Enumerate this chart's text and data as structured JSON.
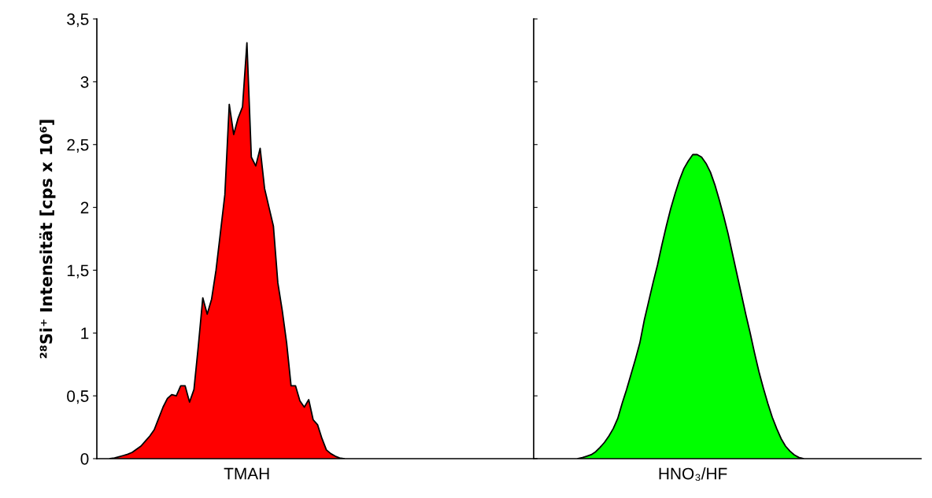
{
  "chart_data": {
    "type": "area",
    "ylabel": "²⁸Si⁺ Intensität [cps x 10⁶]",
    "categories": [
      null,
      null,
      null,
      null,
      null,
      null,
      null,
      null,
      null,
      null,
      null,
      null,
      null,
      null,
      null,
      null,
      null,
      null,
      null,
      null,
      null,
      null,
      null,
      null,
      null,
      null,
      null,
      null,
      null,
      null,
      null,
      "TMAH",
      null,
      null,
      null,
      null,
      null,
      null,
      null,
      null,
      null,
      null,
      null,
      null,
      null,
      null,
      null,
      null,
      null,
      null,
      null,
      null,
      null,
      null,
      null,
      null,
      null,
      null,
      null,
      null,
      null,
      null,
      null,
      null,
      null,
      null,
      null,
      null,
      null,
      null,
      null,
      null,
      null,
      null,
      null,
      null,
      null,
      null,
      null,
      null,
      null,
      null,
      null,
      null,
      null,
      null,
      null,
      null,
      null,
      null,
      null,
      null,
      null,
      null,
      null,
      null,
      null,
      null,
      null,
      null,
      null,
      null,
      null,
      null,
      null,
      null,
      null,
      null,
      null,
      null,
      null,
      null,
      null,
      null,
      null,
      null,
      null,
      null,
      null,
      null,
      null,
      null,
      null,
      null,
      null,
      null,
      null,
      null,
      null,
      null,
      null,
      null,
      "HNO₃/HF",
      null,
      null,
      null,
      null,
      null,
      null,
      null,
      null,
      null,
      null,
      null,
      null,
      null,
      null,
      null,
      null,
      null,
      null,
      null,
      null,
      null,
      null,
      null,
      null,
      null,
      null,
      null,
      null,
      null,
      null,
      null,
      null,
      null,
      null,
      null,
      null,
      null,
      null,
      null,
      null,
      null,
      null,
      null,
      null,
      null,
      null,
      null,
      null,
      null,
      null,
      null
    ],
    "series": [
      {
        "color": "#ff0000",
        "values": [
          0,
          0.005,
          0.015,
          0.025,
          0.035,
          0.05,
          0.075,
          0.1,
          0.14,
          0.18,
          0.23,
          0.32,
          0.41,
          0.48,
          0.51,
          0.5,
          0.58,
          0.58,
          0.45,
          0.55,
          0.9,
          1.28,
          1.15,
          1.27,
          1.5,
          1.8,
          2.1,
          2.82,
          2.58,
          2.71,
          2.8,
          3.31,
          2.4,
          2.33,
          2.47,
          2.15,
          2.0,
          1.85,
          1.4,
          1.18,
          0.92,
          0.58,
          0.58,
          0.46,
          0.41,
          0.47,
          0.31,
          0.27,
          0.16,
          0.07,
          0.04,
          0.02,
          0.005,
          0,
          null,
          null,
          null,
          null,
          null,
          null,
          null,
          null,
          null,
          null,
          null,
          null,
          null,
          null,
          null,
          null,
          null,
          null,
          null,
          null,
          null,
          null,
          null,
          null,
          null,
          null,
          null,
          null,
          null,
          null,
          null,
          null,
          null,
          null,
          null,
          null,
          null,
          null,
          null,
          null,
          null,
          null,
          null,
          null,
          null,
          null,
          null,
          null,
          null,
          null,
          null,
          null,
          null,
          null,
          null,
          null,
          null,
          null,
          null,
          null,
          null,
          null,
          null,
          null,
          null,
          null,
          null,
          null,
          null,
          null,
          null,
          null,
          null,
          null,
          null,
          null,
          null,
          null,
          null,
          null,
          null,
          null,
          null,
          null,
          null,
          null,
          null,
          null,
          null,
          null,
          null,
          null,
          null,
          null,
          null,
          null,
          null,
          null,
          null,
          null,
          null,
          null,
          null,
          null,
          null,
          null,
          null,
          null,
          null,
          null,
          null,
          null,
          null,
          null,
          null,
          null,
          null,
          null,
          null,
          null,
          null,
          null,
          null,
          null,
          null,
          null,
          null,
          null,
          null,
          null
        ]
      },
      {
        "color": "#00ff00",
        "values": [
          null,
          null,
          null,
          null,
          null,
          null,
          null,
          null,
          null,
          null,
          null,
          null,
          null,
          null,
          null,
          null,
          null,
          null,
          null,
          null,
          null,
          null,
          null,
          null,
          null,
          null,
          null,
          null,
          null,
          null,
          null,
          null,
          null,
          null,
          null,
          null,
          null,
          null,
          null,
          null,
          null,
          null,
          null,
          null,
          null,
          null,
          null,
          null,
          null,
          null,
          null,
          null,
          null,
          null,
          null,
          null,
          null,
          null,
          null,
          null,
          null,
          null,
          null,
          null,
          null,
          null,
          null,
          null,
          null,
          null,
          null,
          null,
          null,
          null,
          null,
          null,
          null,
          null,
          null,
          null,
          null,
          null,
          null,
          null,
          null,
          null,
          null,
          null,
          null,
          null,
          null,
          null,
          null,
          null,
          null,
          null,
          null,
          null,
          null,
          null,
          null,
          null,
          null,
          null,
          null,
          null,
          0,
          0.008,
          0.02,
          0.032,
          0.055,
          0.09,
          0.13,
          0.18,
          0.24,
          0.32,
          0.44,
          0.55,
          0.67,
          0.79,
          0.92,
          1.1,
          1.25,
          1.4,
          1.54,
          1.7,
          1.85,
          1.99,
          2.11,
          2.22,
          2.31,
          2.37,
          2.42,
          2.42,
          2.4,
          2.35,
          2.28,
          2.18,
          2.06,
          1.93,
          1.79,
          1.63,
          1.47,
          1.31,
          1.15,
          1.0,
          0.84,
          0.69,
          0.56,
          0.44,
          0.33,
          0.24,
          0.16,
          0.1,
          0.06,
          0.03,
          0.01,
          0,
          null,
          null,
          null,
          null,
          null,
          null,
          null,
          null,
          null,
          null,
          null,
          null,
          null,
          null,
          null,
          null,
          null,
          null,
          null,
          null,
          null,
          null,
          null,
          null,
          null,
          null
        ]
      }
    ],
    "ylim": [
      0,
      3.5
    ],
    "yticks": [
      0,
      {
        "value": 0.5,
        "label": "0,5"
      },
      1,
      {
        "value": 1.5,
        "label": "1,5"
      },
      2,
      {
        "value": 2.5,
        "label": "2,5"
      },
      3,
      {
        "value": 3.5,
        "label": "3,5"
      }
    ]
  }
}
